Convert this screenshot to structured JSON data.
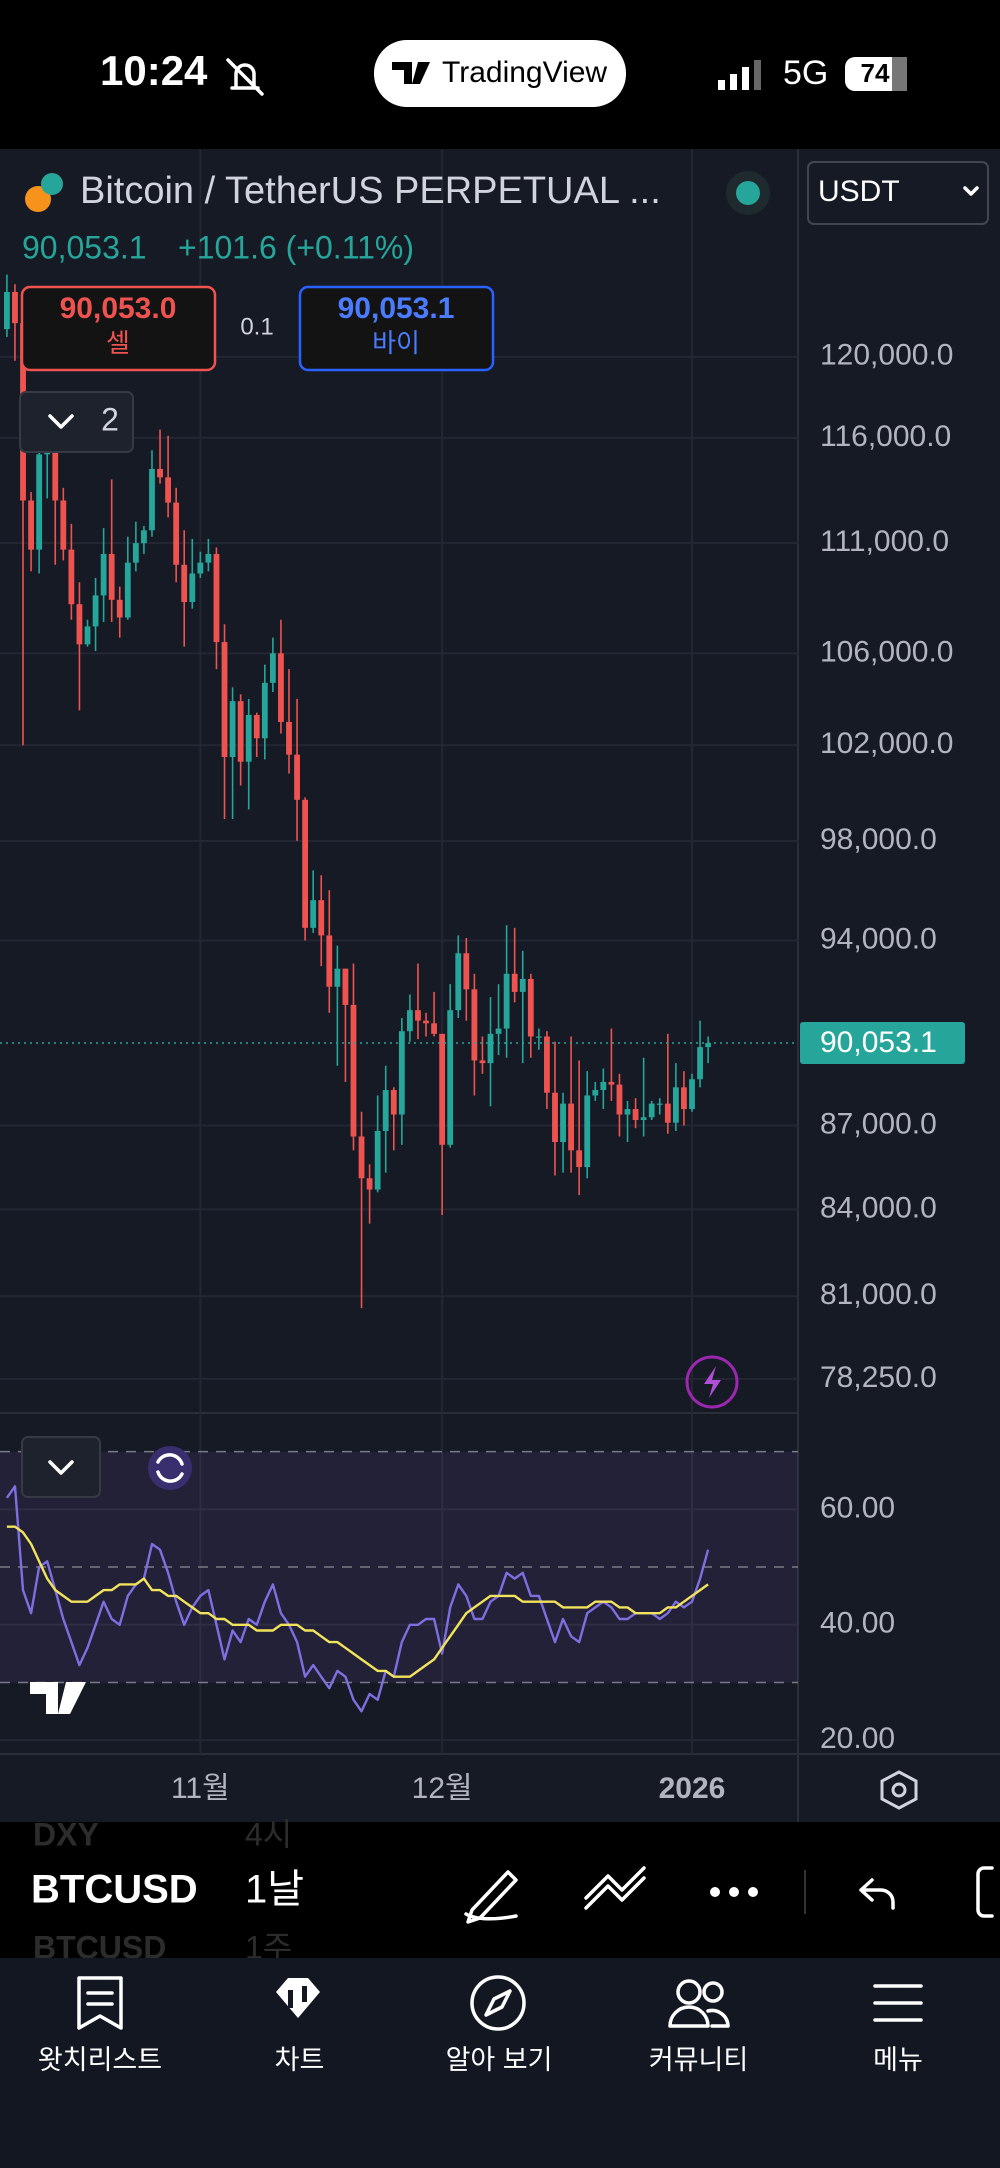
{
  "status_bar": {
    "time": "10:24",
    "app": "TradingView",
    "network": "5G",
    "battery": "74"
  },
  "header": {
    "symbol": "Bitcoin / TetherUS PERPETUAL ...",
    "currency": "USDT",
    "quote": "90,053.1",
    "change": "+101.6 (+0.11%)"
  },
  "trade": {
    "sell_price": "90,053.0",
    "sell_label": "셀",
    "spread": "0.1",
    "buy_price": "90,053.1",
    "buy_label": "바이"
  },
  "indicator_count": "2",
  "chart_data": [
    {
      "type": "candlestick",
      "log_scale": true,
      "grid": true,
      "up_color": "#26a69a",
      "down_color": "#ef5350",
      "categories": [
        null,
        null,
        null,
        null,
        null,
        null,
        null,
        null,
        null,
        null,
        null,
        null,
        null,
        null,
        null,
        null,
        null,
        null,
        null,
        null,
        null,
        null,
        null,
        null,
        "11월",
        null,
        null,
        null,
        null,
        null,
        null,
        null,
        null,
        null,
        null,
        null,
        null,
        null,
        null,
        null,
        null,
        null,
        null,
        null,
        null,
        null,
        null,
        null,
        null,
        null,
        null,
        null,
        null,
        null,
        "12월",
        null,
        null,
        null,
        null,
        null,
        null,
        null,
        null,
        null,
        null,
        null,
        null,
        null,
        null,
        null,
        null,
        null,
        null,
        null,
        null,
        null,
        null,
        null,
        null,
        null,
        null,
        null,
        null,
        null,
        null,
        "2026",
        null,
        null
      ],
      "open": [
        121400,
        123300,
        121700,
        113000,
        110700,
        115200,
        115300,
        113000,
        110700,
        108200,
        106400,
        107200,
        108600,
        110500,
        108400,
        107600,
        110100,
        111000,
        111600,
        114500,
        114100,
        112900,
        110000,
        108300,
        109600,
        110100,
        110500,
        106500,
        101500,
        103900,
        101300,
        103300,
        102300,
        104700,
        106000,
        103000,
        101600,
        99700,
        94500,
        95600,
        94200,
        92200,
        92900,
        91500,
        86600,
        85100,
        84700,
        86800,
        88300,
        87400,
        90500,
        91300,
        90900,
        90800,
        90400,
        86300,
        91300,
        93500,
        92100,
        89400,
        89300,
        90400,
        90600,
        92700,
        92000,
        92500,
        90300,
        90300,
        88200,
        86400,
        87800,
        86100,
        85500,
        88100,
        88300,
        88600,
        88500,
        87400,
        87600,
        87200,
        87300,
        87800,
        87800,
        87100,
        88400,
        87600,
        88700,
        89900
      ],
      "high": [
        124200,
        123700,
        122500,
        113400,
        115900,
        116000,
        115500,
        113600,
        111900,
        109200,
        107500,
        109400,
        111700,
        114000,
        109000,
        111300,
        112000,
        111800,
        115400,
        116400,
        116100,
        113600,
        111600,
        111200,
        110600,
        111200,
        110800,
        107300,
        104500,
        104200,
        104000,
        103400,
        105500,
        106700,
        107500,
        105300,
        104000,
        99800,
        96800,
        96600,
        96000,
        93800,
        92900,
        93100,
        87500,
        85600,
        88100,
        89200,
        88400,
        91000,
        91900,
        93100,
        91200,
        92000,
        90400,
        92300,
        94200,
        94100,
        92700,
        90300,
        91800,
        92300,
        94600,
        94500,
        93600,
        92700,
        90600,
        90500,
        90100,
        88200,
        90300,
        89400,
        89000,
        88600,
        89100,
        90600,
        88900,
        87900,
        88000,
        89500,
        87900,
        88000,
        90400,
        89300,
        89000,
        88900,
        90900,
        90300
      ],
      "low": [
        121000,
        119800,
        102000,
        109700,
        109600,
        113100,
        110000,
        110200,
        107500,
        103500,
        106300,
        106100,
        107400,
        107400,
        106700,
        107500,
        109700,
        110500,
        111300,
        113800,
        112200,
        109200,
        106300,
        108000,
        109400,
        109700,
        105300,
        98900,
        98900,
        100300,
        99300,
        101500,
        101400,
        104300,
        102500,
        100800,
        98000,
        94000,
        94300,
        93000,
        91200,
        89200,
        88600,
        86100,
        80600,
        83500,
        84600,
        85300,
        86100,
        86300,
        90100,
        90200,
        90300,
        90300,
        83800,
        86200,
        91000,
        90900,
        88100,
        88900,
        87700,
        89600,
        89500,
        91600,
        89300,
        89500,
        89800,
        87600,
        85200,
        85300,
        85300,
        84500,
        85100,
        87900,
        87600,
        87900,
        86600,
        86400,
        86900,
        86600,
        87200,
        87400,
        86700,
        86800,
        87000,
        87500,
        88400,
        89300
      ],
      "close": [
        123300,
        121700,
        113000,
        110700,
        115200,
        115300,
        113000,
        110700,
        108200,
        106400,
        107200,
        108600,
        110500,
        108400,
        107600,
        110100,
        111000,
        111600,
        114500,
        114100,
        112900,
        110000,
        108300,
        109600,
        110100,
        110500,
        106500,
        101500,
        103900,
        101300,
        103300,
        102300,
        104700,
        106000,
        103000,
        101600,
        99700,
        94500,
        95600,
        94200,
        92200,
        92900,
        91500,
        86600,
        85100,
        84700,
        86800,
        88300,
        87400,
        90500,
        91300,
        90900,
        90800,
        90400,
        86300,
        91300,
        93500,
        92100,
        89400,
        89300,
        90400,
        90600,
        92700,
        92000,
        92500,
        90300,
        90300,
        88200,
        86400,
        87800,
        86100,
        85500,
        88100,
        88300,
        88600,
        88500,
        87400,
        87600,
        87200,
        87300,
        87800,
        87800,
        87100,
        88400,
        87600,
        88700,
        89900,
        90053.1
      ],
      "ylim": [
        77140,
        130900
      ],
      "yticks": [
        {
          "value": 120000,
          "label": "120,000.0"
        },
        {
          "value": 116000,
          "label": "116,000.0"
        },
        {
          "value": 111000,
          "label": "111,000.0"
        },
        {
          "value": 106000,
          "label": "106,000.0"
        },
        {
          "value": 102000,
          "label": "102,000.0"
        },
        {
          "value": 98000,
          "label": "98,000.0"
        },
        {
          "value": 94000,
          "label": "94,000.0"
        },
        {
          "value": 87000,
          "label": "87,000.0"
        },
        {
          "value": 84000,
          "label": "84,000.0"
        },
        {
          "value": 81000,
          "label": "81,000.0"
        },
        {
          "value": 78250,
          "label": "78,250.0"
        }
      ],
      "last_price": {
        "value": 90053.1,
        "label": "90,053.1"
      },
      "last_price_color": "#26a69a"
    },
    {
      "type": "line",
      "grid": true,
      "ylim": [
        17.6,
        76.7
      ],
      "yticks": [
        {
          "value": 60,
          "label": "60.00"
        },
        {
          "value": 40,
          "label": "40.00"
        },
        {
          "value": 20,
          "label": "20.00"
        }
      ],
      "levels": [
        70,
        50,
        30
      ],
      "series": [
        {
          "color": "#7e6fe0",
          "values": [
            62,
            64,
            46,
            42,
            50,
            51,
            46,
            41,
            37,
            33,
            36,
            40,
            44,
            41,
            40,
            45,
            47,
            48,
            54,
            53,
            49,
            44,
            40,
            43,
            45,
            46,
            40,
            34,
            39,
            37,
            41,
            40,
            44,
            47,
            42,
            40,
            37,
            31,
            33,
            31,
            29,
            32,
            31,
            27,
            25,
            28,
            27,
            32,
            31,
            37,
            40,
            40,
            41,
            41,
            35,
            43,
            47,
            45,
            41,
            41,
            44,
            45,
            49,
            48,
            49,
            45,
            45,
            41,
            37,
            41,
            38,
            37,
            42,
            43,
            44,
            43,
            41,
            41,
            42,
            42,
            42,
            41,
            42,
            44,
            43,
            44,
            48,
            53
          ]
        },
        {
          "color": "#f2e35c",
          "values": [
            57,
            57,
            56,
            54,
            51,
            48,
            46,
            45,
            44,
            44,
            44,
            45,
            46,
            46,
            47,
            47,
            47,
            48,
            46,
            46,
            45,
            45,
            44,
            43,
            42,
            42,
            41,
            41,
            40,
            40,
            40,
            39,
            39,
            39,
            40,
            40,
            40,
            39,
            39,
            38,
            37,
            37,
            36,
            35,
            34,
            33,
            32,
            32,
            31,
            31,
            31,
            32,
            33,
            34,
            36,
            38,
            40,
            42,
            43,
            44,
            45,
            45,
            45,
            45,
            44,
            44,
            44,
            44,
            44,
            43,
            43,
            43,
            43,
            44,
            44,
            44,
            43,
            43,
            42,
            42,
            42,
            42,
            43,
            43,
            44,
            45,
            46,
            47
          ]
        }
      ]
    }
  ],
  "toolbar": {
    "prev_symbol": "DXY",
    "prev_interval": "4시",
    "symbol": "BTCUSD",
    "interval": "1날",
    "next_symbol": "BTCUSD",
    "next_interval": "1주"
  },
  "nav": [
    "왓치리스트",
    "차트",
    "알아 보기",
    "커뮤니티",
    "메뉴"
  ]
}
